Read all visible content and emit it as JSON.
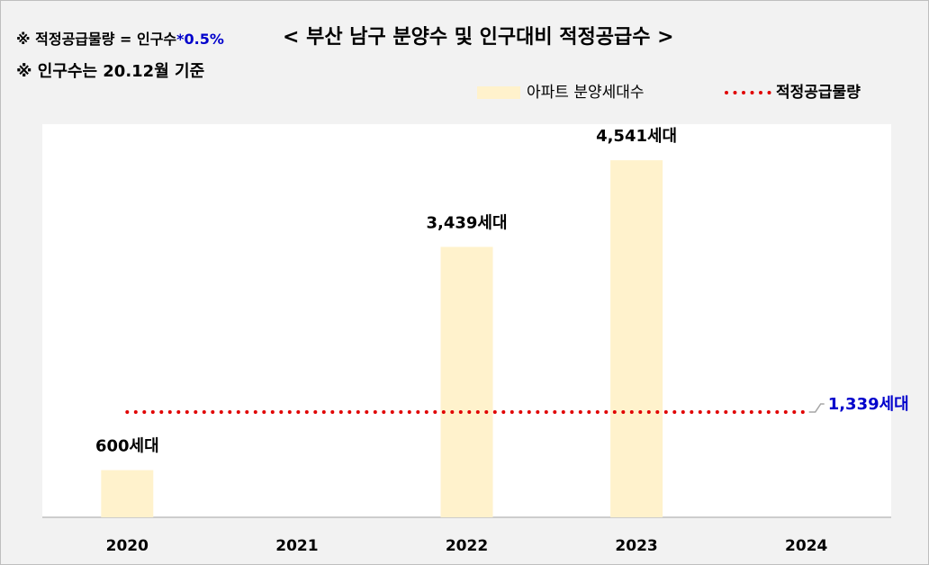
{
  "chart_data": {
    "type": "bar",
    "title": "< 부산 남구 분양수 및 인구대비 적정공급수 >",
    "annotations": [
      "※ 적정공급물량 = 인구수",
      "*0.5%",
      "※ 인구수는 20.12월 기준"
    ],
    "categories": [
      "2020",
      "2021",
      "2022",
      "2023",
      "2024"
    ],
    "series": [
      {
        "name": "아파트 분양세대수",
        "type": "bar",
        "color": "#fff2cc",
        "values": [
          600,
          null,
          3439,
          4541,
          null
        ],
        "value_labels": [
          "600세대",
          null,
          "3,439세대",
          "4,541세대",
          null
        ]
      },
      {
        "name": "적정공급물량",
        "type": "line",
        "color": "#e00000",
        "values": [
          1339,
          1339,
          1339,
          1339,
          1339
        ],
        "value_labels": [
          null,
          null,
          null,
          null,
          "1,339세대"
        ]
      }
    ],
    "ylim": [
      0,
      5000
    ],
    "legend": "top-right"
  }
}
